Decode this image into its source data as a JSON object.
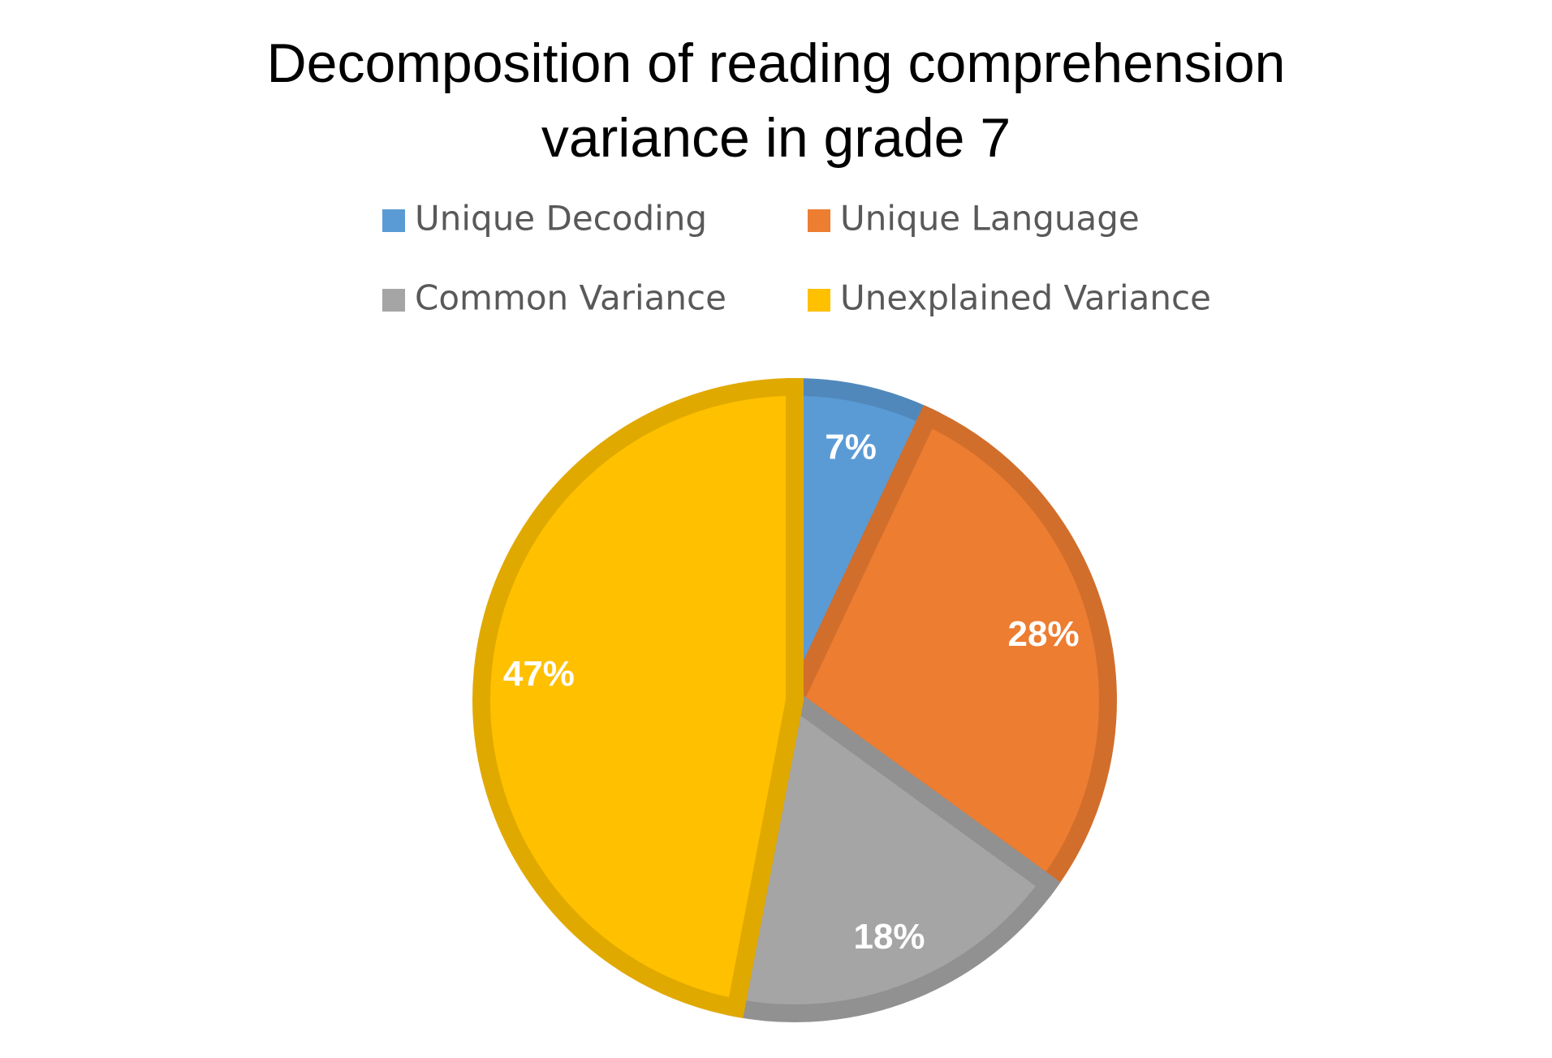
{
  "chart_data": {
    "type": "pie",
    "title": "Decomposition of reading comprehension variance in grade 7",
    "categories": [
      "Unique Decoding",
      "Unique Language",
      "Common Variance",
      "Unexplained Variance"
    ],
    "values": [
      7,
      28,
      18,
      47
    ],
    "value_labels": [
      "7%",
      "28%",
      "18%",
      "47%"
    ],
    "colors": [
      "#5b9bd5",
      "#ed7d31",
      "#a5a5a5",
      "#ffc000"
    ],
    "legend": "top"
  }
}
